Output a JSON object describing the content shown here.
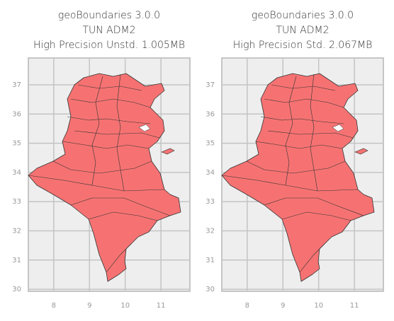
{
  "panels": [
    {
      "title": [
        "geoBoundaries 3.0.0",
        "TUN ADM2",
        "High Precision Unstd. 1.005MB"
      ],
      "xlim": [
        7.29,
        11.81
      ],
      "ylim": [
        29.93,
        37.92
      ],
      "xticks": [
        8,
        9,
        10,
        11
      ],
      "yticks": [
        30,
        31,
        32,
        33,
        34,
        35,
        36,
        37
      ]
    },
    {
      "title": [
        "geoBoundaries 3.0.0",
        "TUN ADM2",
        "High Precision Std. 2.067MB"
      ],
      "xlim": [
        7.29,
        11.81
      ],
      "ylim": [
        29.93,
        37.92
      ],
      "xticks": [
        8,
        9,
        10,
        11
      ],
      "yticks": [
        30,
        31,
        32,
        33,
        34,
        35,
        36,
        37
      ]
    }
  ]
}
